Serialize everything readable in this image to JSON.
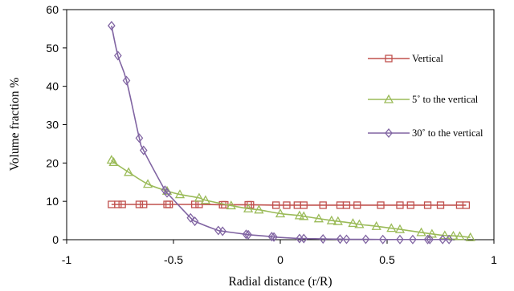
{
  "chart_data": {
    "type": "line",
    "title": "",
    "xlabel": "Radial distance (r/R)",
    "ylabel": "Volume fraction %",
    "xlim": [
      -1,
      1
    ],
    "ylim": [
      0,
      60
    ],
    "x_ticks": [
      "-1",
      "-0.5",
      "0",
      "0.5",
      "1"
    ],
    "y_ticks": [
      "0",
      "10",
      "20",
      "30",
      "40",
      "50",
      "60"
    ],
    "grid": false,
    "legend_position": "right",
    "series": [
      {
        "name": "Vertical",
        "color": "#c0504d",
        "marker": "square",
        "x": [
          -0.79,
          -0.76,
          -0.74,
          -0.66,
          -0.64,
          -0.53,
          -0.52,
          -0.4,
          -0.38,
          -0.27,
          -0.26,
          -0.15,
          -0.14,
          -0.02,
          0.03,
          0.08,
          0.11,
          0.2,
          0.28,
          0.31,
          0.36,
          0.47,
          0.56,
          0.61,
          0.69,
          0.75,
          0.84,
          0.87
        ],
        "y": [
          9.2,
          9.2,
          9.2,
          9.2,
          9.2,
          9.2,
          9.2,
          9.2,
          9.2,
          9.1,
          9.1,
          9.1,
          9.1,
          9.0,
          9.0,
          9.0,
          9.0,
          9.0,
          9.0,
          9.0,
          9.0,
          9.0,
          9.0,
          9.0,
          9.0,
          9.0,
          9.0,
          9.0
        ]
      },
      {
        "name": "5˚ to the vertical",
        "color": "#9bbb59",
        "marker": "triangle",
        "x": [
          -0.79,
          -0.78,
          -0.71,
          -0.62,
          -0.53,
          -0.47,
          -0.38,
          -0.35,
          -0.23,
          -0.15,
          -0.1,
          0.0,
          0.09,
          0.11,
          0.18,
          0.24,
          0.27,
          0.34,
          0.37,
          0.45,
          0.52,
          0.56,
          0.66,
          0.71,
          0.77,
          0.81,
          0.84,
          0.89
        ],
        "y": [
          20.8,
          20.2,
          17.6,
          14.5,
          12.7,
          11.8,
          10.9,
          10.3,
          8.9,
          8.1,
          7.8,
          6.8,
          6.3,
          6.1,
          5.5,
          5.0,
          4.8,
          4.3,
          4.0,
          3.5,
          3.0,
          2.7,
          1.9,
          1.5,
          1.1,
          1.0,
          0.9,
          0.6
        ]
      },
      {
        "name": "30˚ to the vertical",
        "color": "#8064a2",
        "marker": "diamond",
        "x": [
          -0.79,
          -0.76,
          -0.72,
          -0.66,
          -0.64,
          -0.54,
          -0.53,
          -0.42,
          -0.4,
          -0.29,
          -0.27,
          -0.16,
          -0.15,
          -0.04,
          -0.03,
          0.09,
          0.11,
          0.2,
          0.28,
          0.31,
          0.4,
          0.48,
          0.56,
          0.62,
          0.69,
          0.7,
          0.76,
          0.79
        ],
        "y": [
          55.8,
          48.0,
          41.5,
          26.5,
          23.3,
          12.9,
          12.2,
          5.7,
          4.8,
          2.4,
          2.2,
          1.4,
          1.3,
          0.8,
          0.7,
          0.3,
          0.3,
          0.2,
          0.15,
          0.1,
          0.1,
          0.05,
          0.05,
          0.05,
          0.05,
          0.05,
          0.05,
          0.05
        ]
      }
    ]
  }
}
